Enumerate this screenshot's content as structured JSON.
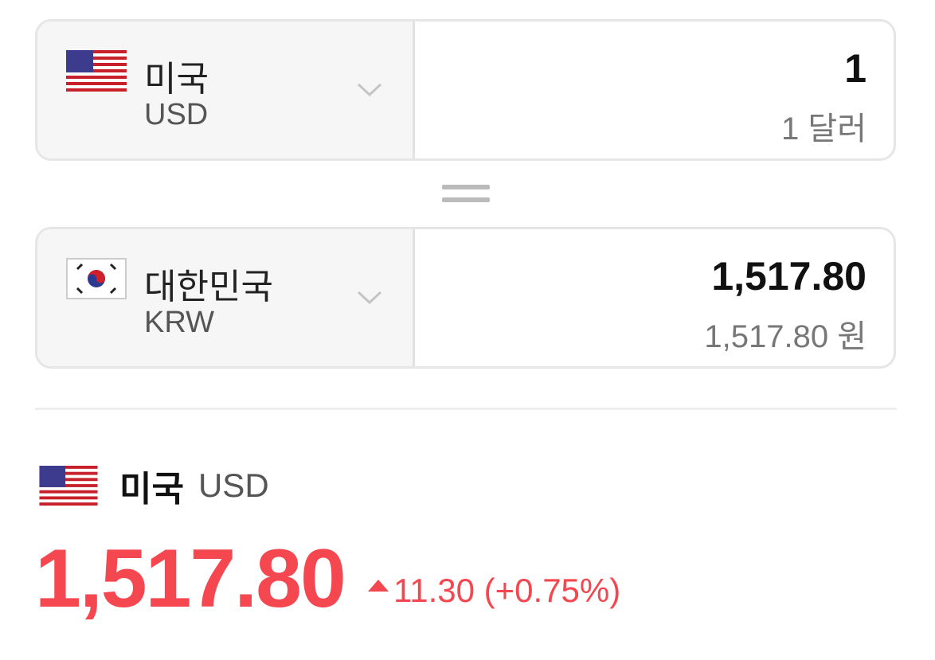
{
  "colors": {
    "accent_up": "#f5474f",
    "selector_bg": "#f6f6f6"
  },
  "from": {
    "country": "미국",
    "code": "USD",
    "flag": "us-flag-icon",
    "amount": "1",
    "amount_text": "1 달러"
  },
  "equals_icon": "equals-icon",
  "to": {
    "country": "대한민국",
    "code": "KRW",
    "flag": "kr-flag-icon",
    "amount": "1,517.80",
    "amount_text": "1,517.80 원"
  },
  "rate": {
    "country": "미국",
    "code": "USD",
    "value": "1,517.80",
    "direction": "up",
    "change": "11.30 (+0.75%)"
  }
}
